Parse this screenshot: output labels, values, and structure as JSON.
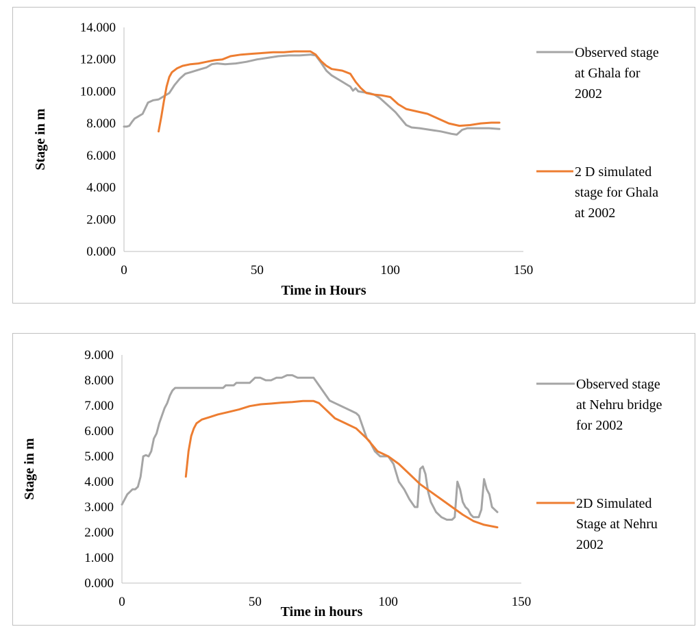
{
  "colors": {
    "observed": "#a5a5a5",
    "simulated": "#ed7d31",
    "axis": "#bfbfbf"
  },
  "chart_data": [
    {
      "type": "line",
      "title": "",
      "xlabel": "Time in Hours",
      "ylabel": "Stage in m",
      "xlim": [
        0,
        150
      ],
      "ylim": [
        0,
        14
      ],
      "xticks": [
        "0",
        "50",
        "100",
        "150"
      ],
      "yticks": [
        "0.000",
        "2.000",
        "4.000",
        "6.000",
        "8.000",
        "10.000",
        "12.000",
        "14.000"
      ],
      "grid": false,
      "legend_position": "right",
      "series": [
        {
          "name": "Observed  stage at Ghala for 2002",
          "legend_lines": [
            "Observed  stage",
            "at Ghala for",
            "2002"
          ],
          "color": "#a5a5a5",
          "points": [
            [
              0,
              7.8
            ],
            [
              1,
              7.8
            ],
            [
              2,
              7.85
            ],
            [
              3,
              8.1
            ],
            [
              4,
              8.3
            ],
            [
              5,
              8.4
            ],
            [
              7,
              8.6
            ],
            [
              9,
              9.3
            ],
            [
              11,
              9.45
            ],
            [
              13,
              9.5
            ],
            [
              15,
              9.7
            ],
            [
              17,
              9.9
            ],
            [
              19,
              10.4
            ],
            [
              21,
              10.8
            ],
            [
              23,
              11.1
            ],
            [
              25,
              11.2
            ],
            [
              27,
              11.3
            ],
            [
              29,
              11.4
            ],
            [
              31,
              11.5
            ],
            [
              33,
              11.7
            ],
            [
              35,
              11.75
            ],
            [
              38,
              11.7
            ],
            [
              42,
              11.75
            ],
            [
              46,
              11.85
            ],
            [
              50,
              12.0
            ],
            [
              54,
              12.1
            ],
            [
              58,
              12.2
            ],
            [
              62,
              12.25
            ],
            [
              66,
              12.25
            ],
            [
              70,
              12.3
            ],
            [
              72,
              12.25
            ],
            [
              74,
              11.8
            ],
            [
              76,
              11.3
            ],
            [
              78,
              11.0
            ],
            [
              80,
              10.8
            ],
            [
              82,
              10.6
            ],
            [
              84,
              10.4
            ],
            [
              85,
              10.3
            ],
            [
              86,
              10.05
            ],
            [
              87,
              10.2
            ],
            [
              88,
              10.0
            ],
            [
              90,
              9.95
            ],
            [
              92,
              9.9
            ],
            [
              94,
              9.8
            ],
            [
              96,
              9.6
            ],
            [
              98,
              9.3
            ],
            [
              100,
              9.0
            ],
            [
              102,
              8.7
            ],
            [
              104,
              8.3
            ],
            [
              106,
              7.9
            ],
            [
              108,
              7.75
            ],
            [
              111,
              7.7
            ],
            [
              115,
              7.6
            ],
            [
              119,
              7.5
            ],
            [
              123,
              7.35
            ],
            [
              125,
              7.3
            ],
            [
              127,
              7.6
            ],
            [
              129,
              7.7
            ],
            [
              133,
              7.7
            ],
            [
              137,
              7.7
            ],
            [
              141,
              7.65
            ]
          ]
        },
        {
          "name": "2 D simulated stage for Ghala at 2002",
          "legend_lines": [
            "2 D simulated",
            "stage for Ghala",
            "at 2002"
          ],
          "color": "#ed7d31",
          "points": [
            [
              13,
              7.5
            ],
            [
              14,
              8.4
            ],
            [
              15,
              9.4
            ],
            [
              16,
              10.3
            ],
            [
              17,
              10.9
            ],
            [
              18,
              11.2
            ],
            [
              20,
              11.45
            ],
            [
              22,
              11.6
            ],
            [
              25,
              11.7
            ],
            [
              28,
              11.75
            ],
            [
              31,
              11.85
            ],
            [
              34,
              11.95
            ],
            [
              37,
              12.0
            ],
            [
              40,
              12.2
            ],
            [
              44,
              12.3
            ],
            [
              48,
              12.35
            ],
            [
              52,
              12.4
            ],
            [
              56,
              12.45
            ],
            [
              60,
              12.45
            ],
            [
              64,
              12.5
            ],
            [
              68,
              12.5
            ],
            [
              70,
              12.5
            ],
            [
              72,
              12.3
            ],
            [
              74,
              11.9
            ],
            [
              76,
              11.6
            ],
            [
              78,
              11.4
            ],
            [
              82,
              11.3
            ],
            [
              85,
              11.1
            ],
            [
              87,
              10.6
            ],
            [
              89,
              10.2
            ],
            [
              91,
              9.9
            ],
            [
              94,
              9.8
            ],
            [
              97,
              9.75
            ],
            [
              100,
              9.65
            ],
            [
              103,
              9.2
            ],
            [
              106,
              8.9
            ],
            [
              110,
              8.75
            ],
            [
              114,
              8.6
            ],
            [
              118,
              8.3
            ],
            [
              122,
              8.0
            ],
            [
              126,
              7.85
            ],
            [
              130,
              7.9
            ],
            [
              134,
              8.0
            ],
            [
              138,
              8.05
            ],
            [
              141,
              8.05
            ]
          ]
        }
      ]
    },
    {
      "type": "line",
      "title": "",
      "xlabel": "Time in hours",
      "ylabel": "Stage in m",
      "xlim": [
        0,
        150
      ],
      "ylim": [
        0,
        9
      ],
      "xticks": [
        "0",
        "50",
        "100",
        "150"
      ],
      "yticks": [
        "0.000",
        "1.000",
        "2.000",
        "3.000",
        "4.000",
        "5.000",
        "6.000",
        "7.000",
        "8.000",
        "9.000"
      ],
      "grid": false,
      "legend_position": "right",
      "series": [
        {
          "name": "Observed stage at Nehru bridge for 2002",
          "legend_lines": [
            "Observed stage",
            "at Nehru bridge",
            "for 2002"
          ],
          "color": "#a5a5a5",
          "points": [
            [
              0,
              3.1
            ],
            [
              1,
              3.3
            ],
            [
              2,
              3.5
            ],
            [
              3,
              3.6
            ],
            [
              4,
              3.7
            ],
            [
              5,
              3.7
            ],
            [
              6,
              3.8
            ],
            [
              7,
              4.2
            ],
            [
              8,
              5.0
            ],
            [
              9,
              5.05
            ],
            [
              10,
              5.0
            ],
            [
              11,
              5.2
            ],
            [
              12,
              5.7
            ],
            [
              13,
              5.9
            ],
            [
              14,
              6.3
            ],
            [
              15,
              6.6
            ],
            [
              16,
              6.9
            ],
            [
              17,
              7.1
            ],
            [
              18,
              7.4
            ],
            [
              19,
              7.6
            ],
            [
              20,
              7.7
            ],
            [
              22,
              7.7
            ],
            [
              26,
              7.7
            ],
            [
              30,
              7.7
            ],
            [
              34,
              7.7
            ],
            [
              38,
              7.7
            ],
            [
              39,
              7.8
            ],
            [
              42,
              7.8
            ],
            [
              43,
              7.9
            ],
            [
              48,
              7.9
            ],
            [
              50,
              8.1
            ],
            [
              52,
              8.1
            ],
            [
              54,
              8.0
            ],
            [
              56,
              8.0
            ],
            [
              58,
              8.1
            ],
            [
              60,
              8.1
            ],
            [
              62,
              8.2
            ],
            [
              64,
              8.2
            ],
            [
              66,
              8.1
            ],
            [
              68,
              8.1
            ],
            [
              72,
              8.1
            ],
            [
              74,
              7.8
            ],
            [
              76,
              7.5
            ],
            [
              78,
              7.2
            ],
            [
              80,
              7.1
            ],
            [
              82,
              7.0
            ],
            [
              84,
              6.9
            ],
            [
              86,
              6.8
            ],
            [
              88,
              6.7
            ],
            [
              89,
              6.6
            ],
            [
              90,
              6.3
            ],
            [
              91,
              6.0
            ],
            [
              92,
              5.7
            ],
            [
              93,
              5.6
            ],
            [
              95,
              5.2
            ],
            [
              97,
              5.0
            ],
            [
              100,
              5.0
            ],
            [
              102,
              4.7
            ],
            [
              104,
              4.0
            ],
            [
              106,
              3.7
            ],
            [
              108,
              3.3
            ],
            [
              110,
              3.0
            ],
            [
              111,
              3.0
            ],
            [
              112,
              4.5
            ],
            [
              113,
              4.6
            ],
            [
              114,
              4.3
            ],
            [
              115,
              3.6
            ],
            [
              116,
              3.2
            ],
            [
              118,
              2.8
            ],
            [
              120,
              2.6
            ],
            [
              122,
              2.5
            ],
            [
              124,
              2.5
            ],
            [
              125,
              2.6
            ],
            [
              126,
              4.0
            ],
            [
              127,
              3.7
            ],
            [
              128,
              3.2
            ],
            [
              129,
              3.0
            ],
            [
              130,
              2.9
            ],
            [
              131,
              2.7
            ],
            [
              132,
              2.6
            ],
            [
              134,
              2.6
            ],
            [
              135,
              2.9
            ],
            [
              136,
              4.1
            ],
            [
              137,
              3.7
            ],
            [
              138,
              3.5
            ],
            [
              139,
              3.0
            ],
            [
              140,
              2.9
            ],
            [
              141,
              2.8
            ]
          ]
        },
        {
          "name": "2D Simulated Stage at Nehru 2002",
          "legend_lines": [
            " 2D Simulated",
            "Stage at Nehru",
            "2002"
          ],
          "color": "#ed7d31",
          "points": [
            [
              24,
              4.2
            ],
            [
              25,
              5.2
            ],
            [
              26,
              5.8
            ],
            [
              27,
              6.1
            ],
            [
              28,
              6.3
            ],
            [
              30,
              6.45
            ],
            [
              33,
              6.55
            ],
            [
              36,
              6.65
            ],
            [
              40,
              6.75
            ],
            [
              44,
              6.85
            ],
            [
              48,
              6.98
            ],
            [
              52,
              7.05
            ],
            [
              56,
              7.08
            ],
            [
              60,
              7.12
            ],
            [
              64,
              7.14
            ],
            [
              68,
              7.18
            ],
            [
              72,
              7.18
            ],
            [
              74,
              7.1
            ],
            [
              76,
              6.9
            ],
            [
              78,
              6.7
            ],
            [
              80,
              6.5
            ],
            [
              84,
              6.3
            ],
            [
              88,
              6.1
            ],
            [
              92,
              5.7
            ],
            [
              96,
              5.2
            ],
            [
              100,
              5.0
            ],
            [
              104,
              4.7
            ],
            [
              108,
              4.3
            ],
            [
              112,
              3.9
            ],
            [
              116,
              3.6
            ],
            [
              120,
              3.3
            ],
            [
              124,
              3.0
            ],
            [
              128,
              2.7
            ],
            [
              132,
              2.45
            ],
            [
              136,
              2.3
            ],
            [
              141,
              2.2
            ]
          ]
        }
      ]
    }
  ]
}
